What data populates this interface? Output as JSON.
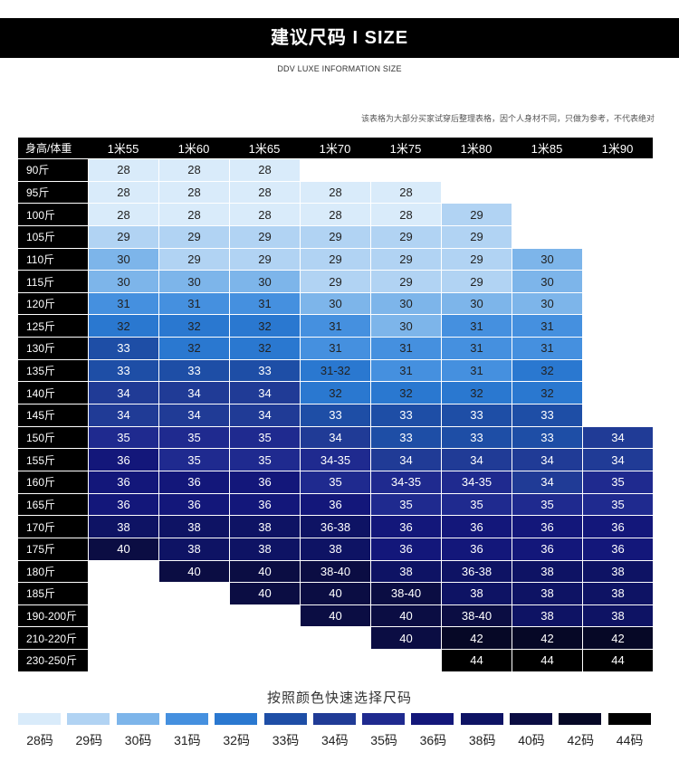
{
  "header": {
    "title": "建议尺码  I  SIZE",
    "subtitle": "DDV LUXE INFORMATION SIZE",
    "note": "该表格为大部分买家试穿后整理表格，因个人身材不同，只做为参考，不代表绝对"
  },
  "table": {
    "corner": "身高/体重",
    "columns": [
      "1米55",
      "1米60",
      "1米65",
      "1米70",
      "1米75",
      "1米80",
      "1米85",
      "1米90"
    ],
    "rows": [
      {
        "label": "90斤",
        "cells": [
          "28",
          "28",
          "28",
          "",
          "",
          "",
          "",
          ""
        ]
      },
      {
        "label": "95斤",
        "cells": [
          "28",
          "28",
          "28",
          "28",
          "28",
          "",
          "",
          ""
        ]
      },
      {
        "label": "100斤",
        "cells": [
          "28",
          "28",
          "28",
          "28",
          "28",
          "29",
          "",
          ""
        ]
      },
      {
        "label": "105斤",
        "cells": [
          "29",
          "29",
          "29",
          "29",
          "29",
          "29",
          "",
          ""
        ]
      },
      {
        "label": "110斤",
        "cells": [
          "30",
          "29",
          "29",
          "29",
          "29",
          "29",
          "30",
          ""
        ]
      },
      {
        "label": "115斤",
        "cells": [
          "30",
          "30",
          "30",
          "29",
          "29",
          "29",
          "30",
          ""
        ]
      },
      {
        "label": "120斤",
        "cells": [
          "31",
          "31",
          "31",
          "30",
          "30",
          "30",
          "30",
          ""
        ]
      },
      {
        "label": "125斤",
        "cells": [
          "32",
          "32",
          "32",
          "31",
          "30",
          "31",
          "31",
          ""
        ]
      },
      {
        "label": "130斤",
        "cells": [
          "33",
          "32",
          "32",
          "31",
          "31",
          "31",
          "31",
          ""
        ]
      },
      {
        "label": "135斤",
        "cells": [
          "33",
          "33",
          "33",
          "31-32",
          "31",
          "31",
          "32",
          ""
        ]
      },
      {
        "label": "140斤",
        "cells": [
          "34",
          "34",
          "34",
          "32",
          "32",
          "32",
          "32",
          ""
        ]
      },
      {
        "label": "145斤",
        "cells": [
          "34",
          "34",
          "34",
          "33",
          "33",
          "33",
          "33",
          ""
        ]
      },
      {
        "label": "150斤",
        "cells": [
          "35",
          "35",
          "35",
          "34",
          "33",
          "33",
          "33",
          "34"
        ]
      },
      {
        "label": "155斤",
        "cells": [
          "36",
          "35",
          "35",
          "34-35",
          "34",
          "34",
          "34",
          "34"
        ]
      },
      {
        "label": "160斤",
        "cells": [
          "36",
          "36",
          "36",
          "35",
          "34-35",
          "34-35",
          "34",
          "35"
        ]
      },
      {
        "label": "165斤",
        "cells": [
          "36",
          "36",
          "36",
          "36",
          "35",
          "35",
          "35",
          "35"
        ]
      },
      {
        "label": "170斤",
        "cells": [
          "38",
          "38",
          "38",
          "36-38",
          "36",
          "36",
          "36",
          "36"
        ]
      },
      {
        "label": "175斤",
        "cells": [
          "40",
          "38",
          "38",
          "38",
          "36",
          "36",
          "36",
          "36"
        ]
      },
      {
        "label": "180斤",
        "cells": [
          "",
          "40",
          "40",
          "38-40",
          "38",
          "36-38",
          "38",
          "38"
        ]
      },
      {
        "label": "185斤",
        "cells": [
          "",
          "",
          "40",
          "40",
          "38-40",
          "38",
          "38",
          "38"
        ]
      },
      {
        "label": "190-200斤",
        "cells": [
          "",
          "",
          "",
          "40",
          "40",
          "38-40",
          "38",
          "38"
        ]
      },
      {
        "label": "210-220斤",
        "cells": [
          "",
          "",
          "",
          "",
          "40",
          "42",
          "42",
          "42"
        ]
      },
      {
        "label": "230-250斤",
        "cells": [
          "",
          "",
          "",
          "",
          "",
          "44",
          "44",
          "44"
        ]
      }
    ]
  },
  "colors": {
    "28": "#d9ebfa",
    "29": "#b1d3f3",
    "30": "#7db5ea",
    "31": "#4590df",
    "32": "#2a78d0",
    "33": "#1e4ea6",
    "34": "#203b96",
    "35": "#1f2a8f",
    "36": "#13177a",
    "38": "#0e1364",
    "40": "#0b0d43",
    "42": "#060826",
    "44": "#000000"
  },
  "legend": {
    "title": "按照颜色快速选择尺码",
    "items": [
      {
        "key": "28",
        "label": "28码"
      },
      {
        "key": "29",
        "label": "29码"
      },
      {
        "key": "30",
        "label": "30码"
      },
      {
        "key": "31",
        "label": "31码"
      },
      {
        "key": "32",
        "label": "32码"
      },
      {
        "key": "33",
        "label": "33码"
      },
      {
        "key": "34",
        "label": "34码"
      },
      {
        "key": "35",
        "label": "35码"
      },
      {
        "key": "36",
        "label": "36码"
      },
      {
        "key": "38",
        "label": "38码"
      },
      {
        "key": "40",
        "label": "40码"
      },
      {
        "key": "42",
        "label": "42码"
      },
      {
        "key": "44",
        "label": "44码"
      }
    ]
  }
}
